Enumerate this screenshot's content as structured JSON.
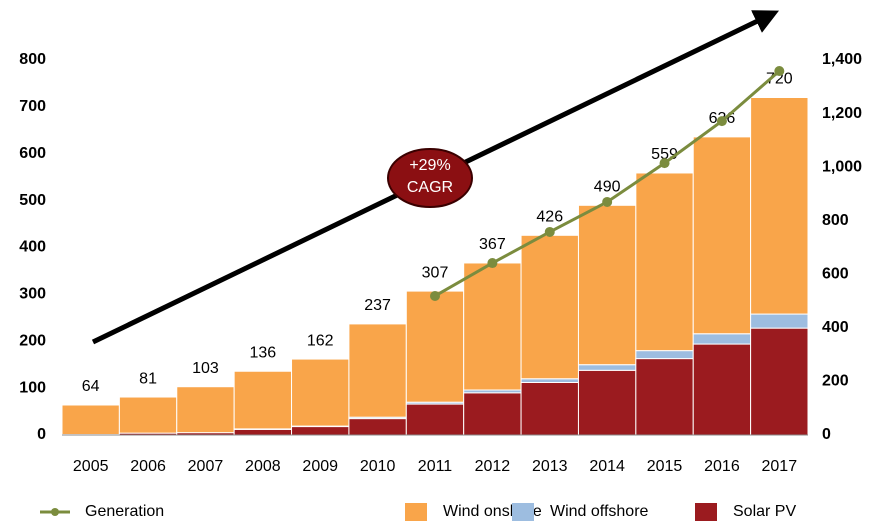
{
  "chart_data": {
    "type": "bar",
    "stacked": true,
    "categories": [
      "2005",
      "2006",
      "2007",
      "2008",
      "2009",
      "2010",
      "2011",
      "2012",
      "2013",
      "2014",
      "2015",
      "2016",
      "2017"
    ],
    "series": [
      {
        "name": "Solar PV",
        "color": "#9b1b1f",
        "values": [
          1,
          4,
          5,
          12,
          18,
          35,
          66,
          90,
          112,
          138,
          163,
          194,
          228
        ]
      },
      {
        "name": "Wind offshore",
        "color": "#9dbde0",
        "values": [
          0,
          0,
          0,
          1,
          1,
          3,
          4,
          6,
          8,
          12,
          17,
          22,
          30
        ]
      },
      {
        "name": "Wind onshore",
        "color": "#f9a54a",
        "values": [
          63,
          77,
          98,
          123,
          143,
          199,
          237,
          271,
          306,
          340,
          379,
          420,
          462
        ]
      },
      {
        "name": "Generation",
        "type": "line",
        "axis": "y2",
        "color": "#7b8c3e",
        "values": [
          null,
          null,
          null,
          null,
          null,
          null,
          519,
          642,
          758,
          870,
          1015,
          1172,
          1359
        ]
      }
    ],
    "totals": [
      64,
      81,
      103,
      136,
      162,
      237,
      307,
      367,
      426,
      490,
      559,
      636,
      720
    ],
    "ylim": [
      0,
      800
    ],
    "yticks": [
      0,
      100,
      200,
      300,
      400,
      500,
      600,
      700,
      800
    ],
    "y2lim": [
      0,
      1400
    ],
    "y2ticks": [
      0,
      200,
      400,
      600,
      800,
      {
        "value": 1000,
        "label": "1,000"
      },
      {
        "value": 1200,
        "label": "1,200"
      },
      {
        "value": 1400,
        "label": "1,400"
      }
    ],
    "annotation": [
      "+29%",
      "CAGR"
    ],
    "legend": [
      "Generation",
      "Wind onshore",
      "Wind offshore",
      "Solar PV"
    ]
  }
}
